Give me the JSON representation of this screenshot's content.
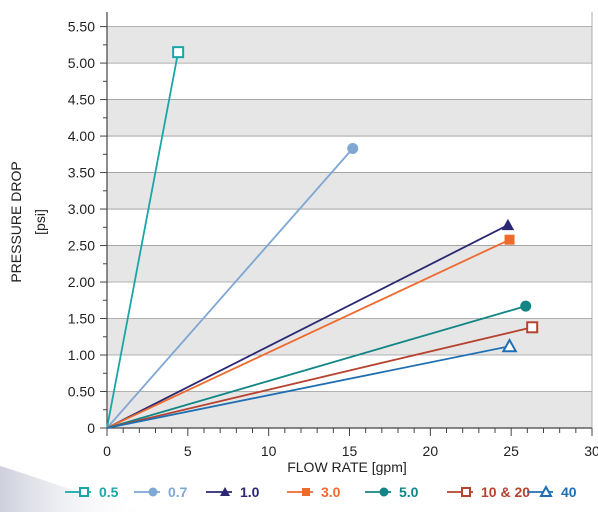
{
  "chart_data": {
    "type": "line",
    "xlabel": "FLOW RATE [gpm]",
    "ylabel": "PRESSURE DROP",
    "ylabel_unit": "[psi]",
    "xlim": [
      0,
      30
    ],
    "ylim": [
      0,
      5.5
    ],
    "x_tick_labels": [
      "0",
      "5",
      "10",
      "15",
      "20",
      "25",
      "30"
    ],
    "y_tick_labels": [
      "0",
      "0.50",
      "1.00",
      "1.50",
      "2.00",
      "2.50",
      "3.00",
      "3.50",
      "4.00",
      "4.50",
      "5.00",
      "5.50"
    ],
    "grid": "alternating horizontal bands",
    "legend_position": "bottom",
    "series": [
      {
        "name": "0.5",
        "color": "#1aa6a8",
        "marker": "square-open",
        "x": [
          0,
          4.4
        ],
        "y": [
          0,
          5.15
        ]
      },
      {
        "name": "0.7",
        "color": "#7fa7d4",
        "marker": "circle-filled",
        "x": [
          0,
          15.2
        ],
        "y": [
          0,
          3.83
        ]
      },
      {
        "name": "1.0",
        "color": "#2a2872",
        "marker": "triangle-filled",
        "x": [
          0,
          24.8
        ],
        "y": [
          0,
          2.78
        ]
      },
      {
        "name": "3.0",
        "color": "#ee6a2e",
        "marker": "square-filled",
        "x": [
          0,
          24.9
        ],
        "y": [
          0,
          2.58
        ]
      },
      {
        "name": "5.0",
        "color": "#128585",
        "marker": "circle-filled",
        "x": [
          0,
          25.9
        ],
        "y": [
          0,
          1.67
        ]
      },
      {
        "name": "10 & 20",
        "color": "#b5432f",
        "marker": "square-open",
        "x": [
          0,
          26.3
        ],
        "y": [
          0,
          1.38
        ]
      },
      {
        "name": "40",
        "color": "#1f6fb2",
        "marker": "triangle-open",
        "x": [
          0,
          24.9
        ],
        "y": [
          0,
          1.12
        ]
      }
    ]
  }
}
